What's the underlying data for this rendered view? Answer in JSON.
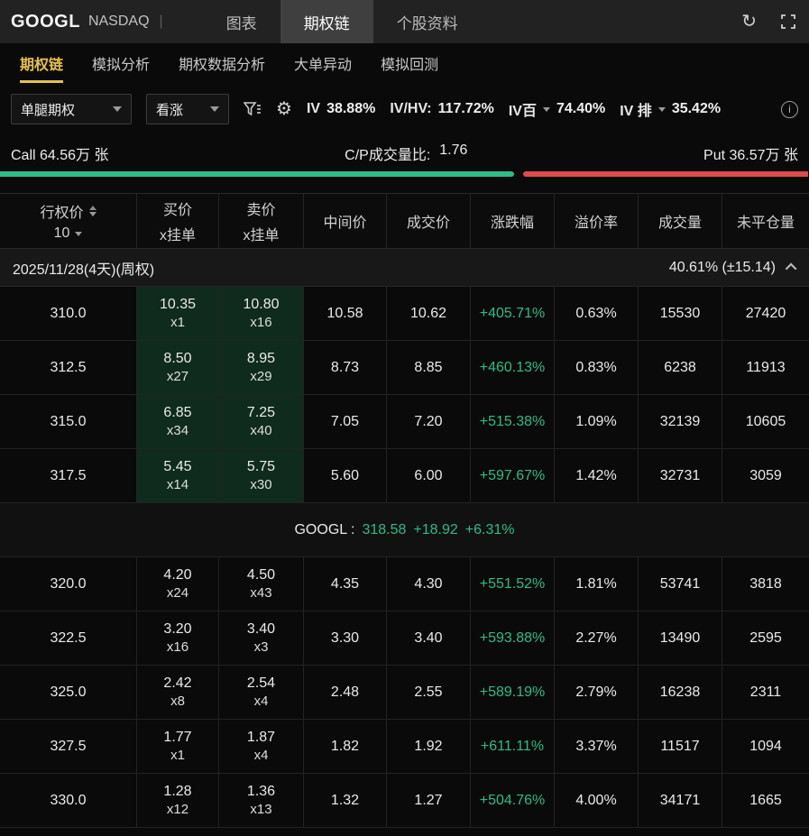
{
  "colors": {
    "accent_yellow": "#e7c14c",
    "up_green": "#2ebd85",
    "down_red": "#dd4b4b"
  },
  "top_bar": {
    "symbol": "GOOGL",
    "exchange": "NASDAQ",
    "divider": "|",
    "tabs": [
      {
        "label": "图表"
      },
      {
        "label": "期权链"
      },
      {
        "label": "个股资料"
      }
    ]
  },
  "subnav": {
    "tabs": [
      {
        "label": "期权链"
      },
      {
        "label": "模拟分析"
      },
      {
        "label": "期权数据分析"
      },
      {
        "label": "大单异动"
      },
      {
        "label": "模拟回测"
      }
    ]
  },
  "icons": {
    "refresh": "↻",
    "settings": "⚙",
    "info": "i"
  },
  "filters": {
    "strategy_value": "单腿期权",
    "direction_value": "看涨",
    "iv_label": "IV",
    "iv_value": "38.88%",
    "ivhv_label": "IV/HV:",
    "ivhv_value": "117.72%",
    "ivpct_label": "IV百",
    "ivpct_value": "74.40%",
    "ivrank_label": "IV 排",
    "ivrank_value": "35.42%"
  },
  "volume_bar": {
    "call_label": "Call 64.56万 张",
    "ratio_label": "C/P成交量比:",
    "ratio_value": "1.76",
    "put_label": "Put 36.57万 张",
    "call_pct": 63.5,
    "put_pct": 35.3
  },
  "expiry": {
    "date_label": "2025/11/28(4天)(周权)",
    "iv_value": "40.61% (±15.14)"
  },
  "underlying": {
    "symbol_label": "GOOGL :",
    "price": "318.58",
    "change": "+18.92",
    "change_pct": "+6.31%"
  },
  "table": {
    "strike_header": {
      "label": "行权价",
      "interval": "10"
    },
    "headers": [
      {
        "line1": "买价",
        "line2": "x挂单"
      },
      {
        "line1": "卖价",
        "line2": "x挂单"
      },
      {
        "line1": "中间价",
        "line2": ""
      },
      {
        "line1": "成交价",
        "line2": ""
      },
      {
        "line1": "涨跌幅",
        "line2": ""
      },
      {
        "line1": "溢价率",
        "line2": ""
      },
      {
        "line1": "成交量",
        "line2": ""
      },
      {
        "line1": "未平仓量",
        "line2": ""
      }
    ],
    "itm_rows": [
      {
        "strike": "310.0",
        "bid": "10.35",
        "bid_size": "x1",
        "ask": "10.80",
        "ask_size": "x16",
        "mid": "10.58",
        "last": "10.62",
        "change": "+405.71%",
        "premium": "0.63%",
        "volume": "15530",
        "oi": "27420"
      },
      {
        "strike": "312.5",
        "bid": "8.50",
        "bid_size": "x27",
        "ask": "8.95",
        "ask_size": "x29",
        "mid": "8.73",
        "last": "8.85",
        "change": "+460.13%",
        "premium": "0.83%",
        "volume": "6238",
        "oi": "11913"
      },
      {
        "strike": "315.0",
        "bid": "6.85",
        "bid_size": "x34",
        "ask": "7.25",
        "ask_size": "x40",
        "mid": "7.05",
        "last": "7.20",
        "change": "+515.38%",
        "premium": "1.09%",
        "volume": "32139",
        "oi": "10605"
      },
      {
        "strike": "317.5",
        "bid": "5.45",
        "bid_size": "x14",
        "ask": "5.75",
        "ask_size": "x30",
        "mid": "5.60",
        "last": "6.00",
        "change": "+597.67%",
        "premium": "1.42%",
        "volume": "32731",
        "oi": "3059"
      }
    ],
    "otm_rows": [
      {
        "strike": "320.0",
        "bid": "4.20",
        "bid_size": "x24",
        "ask": "4.50",
        "ask_size": "x43",
        "mid": "4.35",
        "last": "4.30",
        "change": "+551.52%",
        "premium": "1.81%",
        "volume": "53741",
        "oi": "3818"
      },
      {
        "strike": "322.5",
        "bid": "3.20",
        "bid_size": "x16",
        "ask": "3.40",
        "ask_size": "x3",
        "mid": "3.30",
        "last": "3.40",
        "change": "+593.88%",
        "premium": "2.27%",
        "volume": "13490",
        "oi": "2595"
      },
      {
        "strike": "325.0",
        "bid": "2.42",
        "bid_size": "x8",
        "ask": "2.54",
        "ask_size": "x4",
        "mid": "2.48",
        "last": "2.55",
        "change": "+589.19%",
        "premium": "2.79%",
        "volume": "16238",
        "oi": "2311"
      },
      {
        "strike": "327.5",
        "bid": "1.77",
        "bid_size": "x1",
        "ask": "1.87",
        "ask_size": "x4",
        "mid": "1.82",
        "last": "1.92",
        "change": "+611.11%",
        "premium": "3.37%",
        "volume": "11517",
        "oi": "1094"
      },
      {
        "strike": "330.0",
        "bid": "1.28",
        "bid_size": "x12",
        "ask": "1.36",
        "ask_size": "x13",
        "mid": "1.32",
        "last": "1.27",
        "change": "+504.76%",
        "premium": "4.00%",
        "volume": "34171",
        "oi": "1665"
      }
    ]
  }
}
